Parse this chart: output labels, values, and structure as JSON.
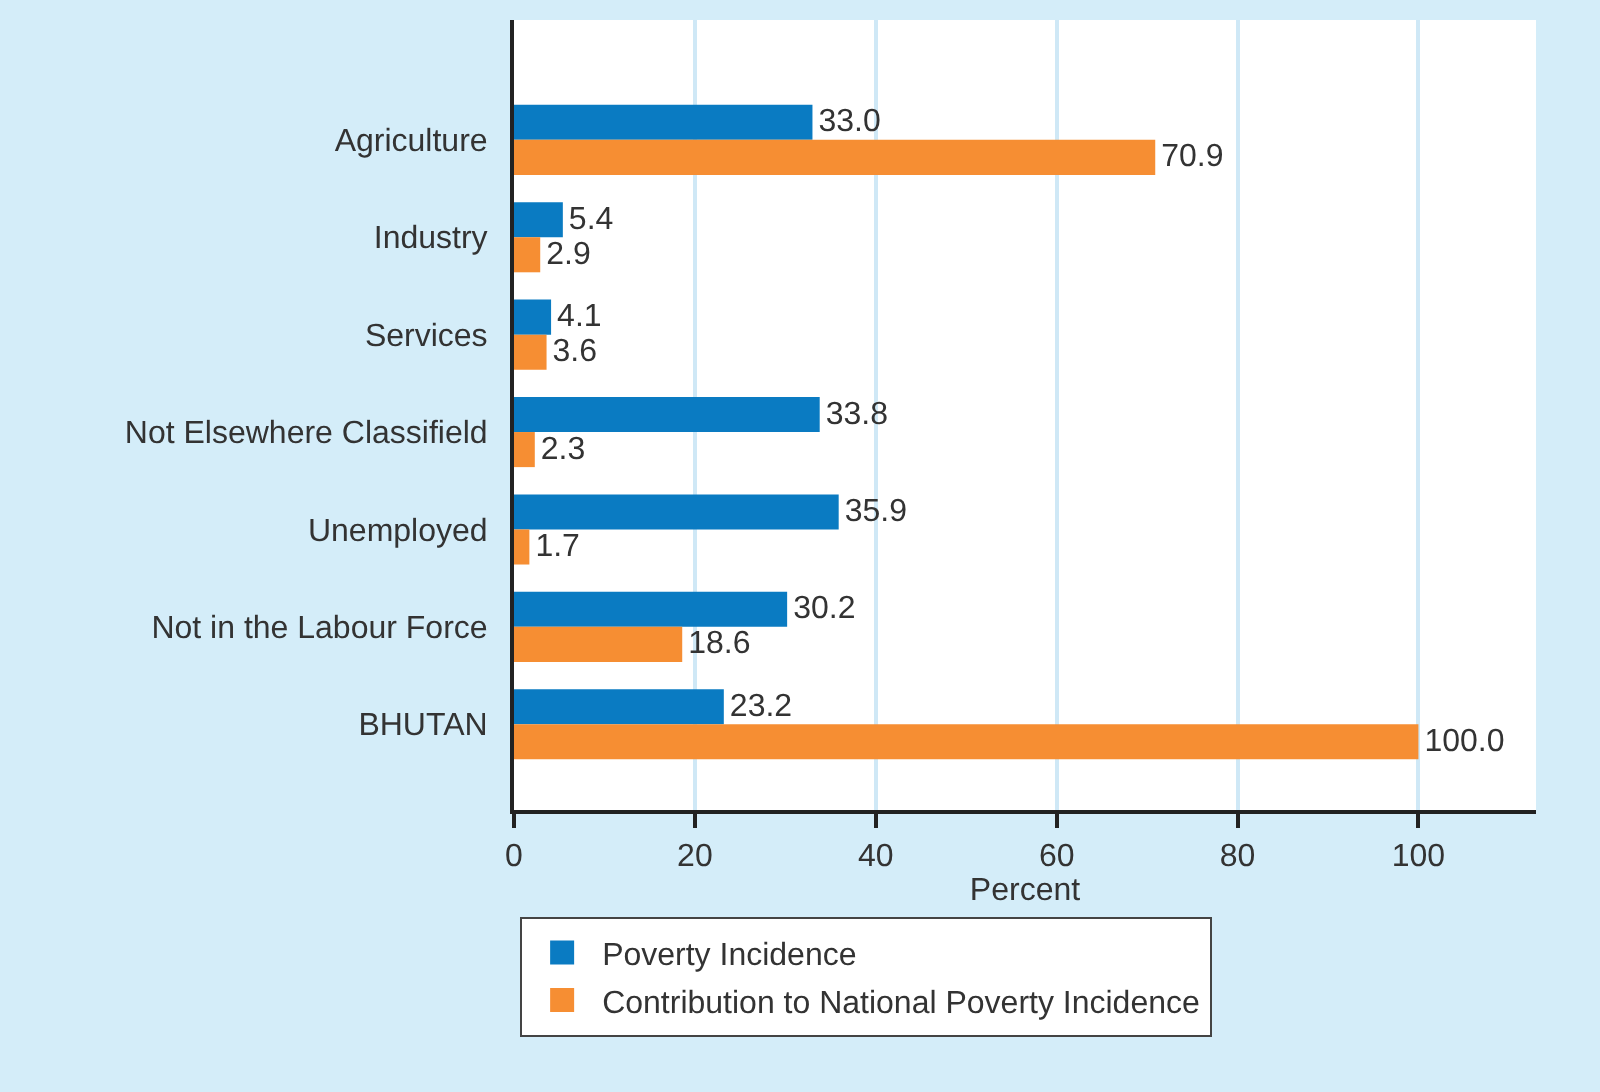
{
  "chart_data": {
    "type": "bar",
    "orientation": "horizontal",
    "categories": [
      "Agriculture",
      "Industry",
      "Services",
      "Not Elsewhere Classifield",
      "Unemployed",
      "Not in the Labour Force",
      "BHUTAN"
    ],
    "series": [
      {
        "name": "Poverty Incidence",
        "color": "#0a7bc2",
        "values": [
          33.0,
          5.4,
          4.1,
          33.8,
          35.9,
          30.2,
          23.2
        ],
        "value_labels": [
          "33.0",
          "5.4",
          "4.1",
          "33.8",
          "35.9",
          "30.2",
          "23.2"
        ]
      },
      {
        "name": "Contribution to National Poverty Incidence",
        "color": "#f68e33",
        "values": [
          70.9,
          2.9,
          3.6,
          2.3,
          1.7,
          18.6,
          100.0
        ],
        "value_labels": [
          "70.9",
          "2.9",
          "3.6",
          "2.3",
          "1.7",
          "18.6",
          "100.0"
        ]
      }
    ],
    "xlabel": "Percent",
    "xlim": [
      0,
      113
    ],
    "xticks": [
      0,
      20,
      40,
      60,
      80,
      100
    ],
    "grid": "x",
    "legend": "bottom"
  }
}
